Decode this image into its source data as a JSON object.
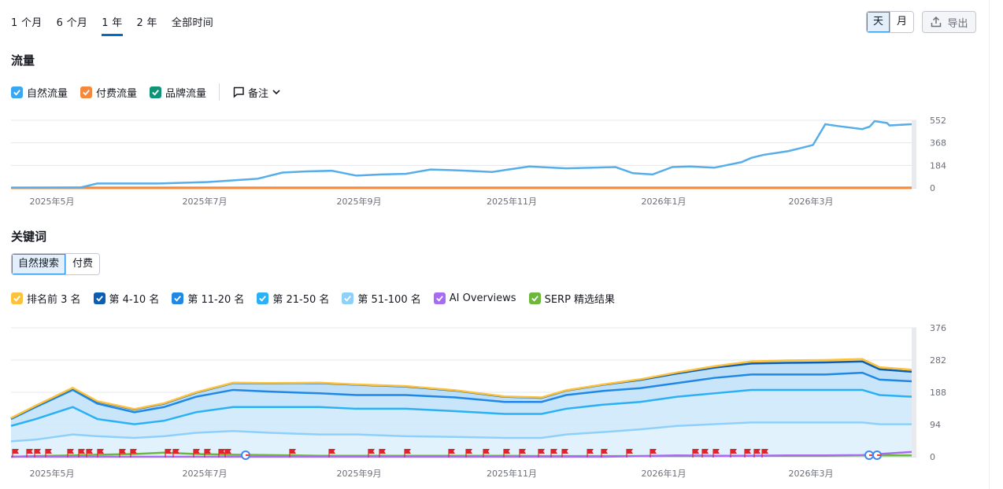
{
  "range_tabs": [
    {
      "label": "1 个月",
      "active": false
    },
    {
      "label": "6 个月",
      "active": false
    },
    {
      "label": "1 年",
      "active": true
    },
    {
      "label": "2 年",
      "active": false
    },
    {
      "label": "全部时间",
      "active": false
    }
  ],
  "granularity": {
    "day": "天",
    "month": "月",
    "selected": "day"
  },
  "export_label": "导出",
  "traffic": {
    "title": "流量",
    "legend": [
      {
        "label": "自然流量",
        "color": "#3aa8f0",
        "checked": true
      },
      {
        "label": "付费流量",
        "color": "#f5883b",
        "checked": true
      },
      {
        "label": "品牌流量",
        "color": "#0e9577",
        "checked": true
      }
    ],
    "notes_label": "备注"
  },
  "keywords": {
    "title": "关键词",
    "mode_tabs": [
      "自然搜索",
      "付费"
    ],
    "mode_selected": 0,
    "legend": [
      {
        "label": "排名前 3 名",
        "color": "#fdc23c"
      },
      {
        "label": "第 4-10 名",
        "color": "#0d5eb2"
      },
      {
        "label": "第 11-20 名",
        "color": "#1f88e6"
      },
      {
        "label": "第 21-50 名",
        "color": "#2ab0f5"
      },
      {
        "label": "第 51-100 名",
        "color": "#8fd0fa"
      },
      {
        "label": "AI Overviews",
        "color": "#a76cf2"
      },
      {
        "label": "SERP 精选结果",
        "color": "#6cb83a"
      }
    ]
  },
  "chart_data": [
    {
      "type": "line",
      "title": "流量",
      "x_ticks": [
        "2025年5月",
        "2025年7月",
        "2025年9月",
        "2025年11月",
        "2026年1月",
        "2026年3月"
      ],
      "y_ticks": [
        0,
        184,
        368,
        552
      ],
      "ylim": [
        0,
        552
      ],
      "x_range": [
        0,
        365
      ],
      "series": [
        {
          "name": "自然流量",
          "color": "#55aeea",
          "x": [
            0,
            28,
            35,
            38,
            60,
            75,
            80,
            95,
            100,
            110,
            120,
            130,
            140,
            150,
            160,
            170,
            178,
            185,
            195,
            200,
            210,
            225,
            245,
            252,
            260,
            268,
            275,
            285,
            296,
            300,
            305,
            315,
            325,
            330,
            335,
            345,
            348,
            350,
            355,
            356,
            365
          ],
          "y": [
            2,
            3,
            36,
            36,
            36,
            45,
            48,
            68,
            75,
            125,
            135,
            140,
            100,
            110,
            115,
            150,
            145,
            140,
            130,
            145,
            175,
            160,
            170,
            120,
            110,
            170,
            175,
            165,
            210,
            245,
            270,
            300,
            350,
            520,
            505,
            480,
            500,
            545,
            530,
            510,
            520
          ]
        },
        {
          "name": "付费流量",
          "color": "#f5883b",
          "x": [
            0,
            365
          ],
          "y": [
            0,
            0
          ]
        },
        {
          "name": "品牌流量",
          "color": "#0e9577",
          "x": [
            0,
            365
          ],
          "y": [
            1,
            1
          ]
        }
      ]
    },
    {
      "type": "area",
      "title": "关键词",
      "x_ticks": [
        "2025年5月",
        "2025年7月",
        "2025年9月",
        "2025年11月",
        "2026年1月",
        "2026年3月"
      ],
      "y_ticks": [
        0,
        94,
        188,
        282,
        376
      ],
      "ylim": [
        0,
        376
      ],
      "x_range": [
        0,
        365
      ],
      "x": [
        0,
        10,
        25,
        35,
        50,
        62,
        75,
        90,
        105,
        125,
        140,
        160,
        180,
        200,
        215,
        225,
        240,
        255,
        270,
        285,
        300,
        315,
        330,
        345,
        352,
        365
      ],
      "series": [
        {
          "name": "排名前 3 名",
          "color": "#fdc23c",
          "values": [
            1,
            1,
            1,
            1,
            1,
            1,
            1,
            1,
            1,
            1,
            1,
            1,
            1,
            1,
            1,
            1,
            1,
            2,
            3,
            4,
            6,
            7,
            7,
            7,
            6,
            6
          ]
        },
        {
          "name": "第 4-10 名",
          "color": "#0d5eb2",
          "values": [
            2,
            3,
            5,
            6,
            8,
            10,
            12,
            20,
            24,
            30,
            30,
            25,
            20,
            15,
            12,
            13,
            18,
            24,
            28,
            30,
            32,
            34,
            35,
            33,
            30,
            28
          ]
        },
        {
          "name": "第 11-20 名",
          "color": "#1f88e6",
          "values": [
            20,
            35,
            50,
            45,
            35,
            40,
            45,
            50,
            45,
            40,
            40,
            40,
            40,
            35,
            35,
            40,
            40,
            40,
            40,
            45,
            45,
            45,
            45,
            50,
            45,
            45
          ]
        },
        {
          "name": "第 21-50 名",
          "color": "#2ab0f5",
          "values": [
            45,
            60,
            80,
            50,
            40,
            45,
            60,
            70,
            75,
            80,
            75,
            80,
            75,
            70,
            70,
            75,
            80,
            80,
            85,
            90,
            95,
            95,
            95,
            95,
            85,
            80
          ]
        },
        {
          "name": "第 51-100 名",
          "color": "#8fd0fa",
          "values": [
            45,
            50,
            65,
            60,
            55,
            60,
            70,
            75,
            70,
            65,
            65,
            60,
            58,
            55,
            55,
            65,
            72,
            80,
            90,
            95,
            100,
            100,
            100,
            100,
            95,
            95
          ]
        },
        {
          "name": "AI Overviews",
          "color": "#a76cf2",
          "values": [
            0,
            0,
            0,
            0,
            0,
            0,
            0,
            0,
            0,
            0,
            0,
            0,
            0,
            0,
            0,
            0,
            0,
            2,
            4,
            3,
            3,
            4,
            4,
            5,
            8,
            14
          ]
        },
        {
          "name": "SERP 精选结果",
          "color": "#6cb83a",
          "values": [
            0,
            2,
            4,
            6,
            8,
            12,
            8,
            6,
            5,
            3,
            3,
            3,
            3,
            3,
            2,
            2,
            2,
            2,
            2,
            2,
            3,
            3,
            3,
            4,
            4,
            4
          ]
        }
      ]
    }
  ]
}
